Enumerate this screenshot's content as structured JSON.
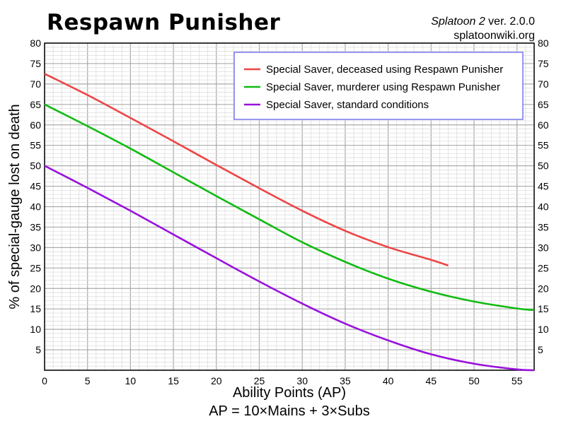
{
  "header": {
    "title": "Respawn Punisher",
    "game": "Splatoon 2",
    "version": "ver. 2.0.0",
    "site": "splatoonwiki.org"
  },
  "chart_data": {
    "type": "line",
    "title": "Respawn Punisher",
    "xlabel": "Ability Points (AP)",
    "xlabel2": "AP = 10×Mains + 3×Subs",
    "ylabel": "% of special-gauge lost on death",
    "xlim": [
      0,
      57
    ],
    "ylim": [
      0,
      80
    ],
    "xticks": [
      0,
      5,
      10,
      15,
      20,
      25,
      30,
      35,
      40,
      45,
      50,
      55
    ],
    "yticks": [
      5,
      10,
      15,
      20,
      25,
      30,
      35,
      40,
      45,
      50,
      55,
      60,
      65,
      70,
      75,
      80
    ],
    "grid": true,
    "legend_position": "top-right",
    "series": [
      {
        "name": "Special Saver, deceased using Respawn Punisher",
        "color": "#ee4444",
        "points": [
          [
            0,
            72.5
          ],
          [
            5,
            67.3
          ],
          [
            10,
            61.7
          ],
          [
            15,
            56.0
          ],
          [
            20,
            50.2
          ],
          [
            25,
            44.5
          ],
          [
            30,
            39.0
          ],
          [
            35,
            34.1
          ],
          [
            40,
            30.1
          ],
          [
            45,
            27.0
          ],
          [
            47,
            25.6
          ]
        ]
      },
      {
        "name": "Special Saver, murderer using Respawn Punisher",
        "color": "#11bb11",
        "points": [
          [
            0,
            65.0
          ],
          [
            5,
            59.7
          ],
          [
            10,
            54.2
          ],
          [
            15,
            48.4
          ],
          [
            20,
            42.6
          ],
          [
            25,
            36.9
          ],
          [
            30,
            31.3
          ],
          [
            35,
            26.5
          ],
          [
            40,
            22.4
          ],
          [
            45,
            19.2
          ],
          [
            50,
            16.8
          ],
          [
            55,
            15.1
          ],
          [
            57,
            14.7
          ]
        ]
      },
      {
        "name": "Special Saver, standard conditions",
        "color": "#9911dd",
        "points": [
          [
            0,
            50.0
          ],
          [
            5,
            44.6
          ],
          [
            10,
            39.0
          ],
          [
            15,
            33.2
          ],
          [
            20,
            27.4
          ],
          [
            25,
            21.7
          ],
          [
            30,
            16.3
          ],
          [
            35,
            11.4
          ],
          [
            40,
            7.3
          ],
          [
            45,
            3.9
          ],
          [
            50,
            1.6
          ],
          [
            55,
            0.2
          ],
          [
            57,
            0.0
          ]
        ]
      }
    ]
  }
}
